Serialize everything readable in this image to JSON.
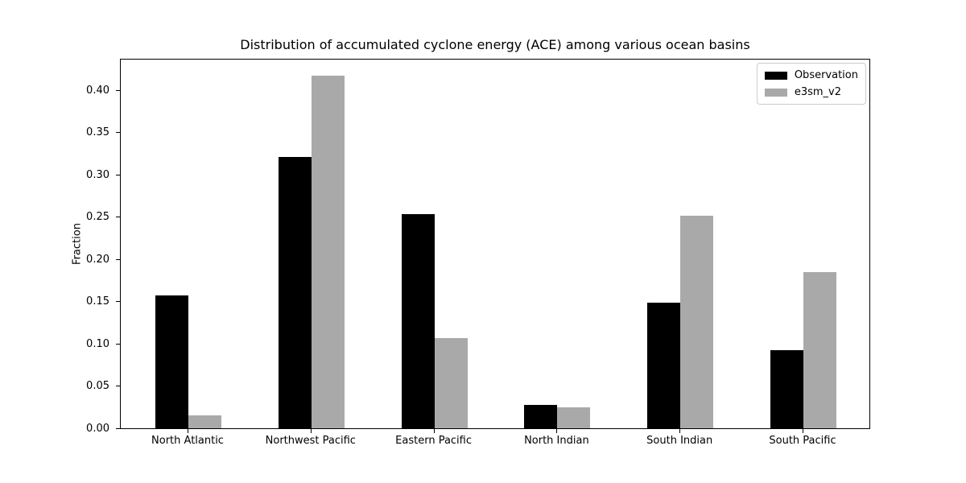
{
  "chart_data": {
    "type": "bar",
    "title": "Distribution of accumulated cyclone energy (ACE) among various ocean basins",
    "xlabel": "",
    "ylabel": "Fraction",
    "categories": [
      "North Atlantic",
      "Northwest Pacific",
      "Eastern Pacific",
      "North Indian",
      "South Indian",
      "South Pacific"
    ],
    "series": [
      {
        "name": "Observation",
        "color": "#000000",
        "values": [
          0.157,
          0.321,
          0.253,
          0.028,
          0.149,
          0.092
        ]
      },
      {
        "name": "e3sm_v2",
        "color": "#a9a9a9",
        "values": [
          0.015,
          0.417,
          0.107,
          0.025,
          0.251,
          0.185
        ]
      }
    ],
    "ylim": [
      0,
      0.438
    ],
    "yticks": [
      0.0,
      0.05,
      0.1,
      0.15,
      0.2,
      0.25,
      0.3,
      0.35,
      0.4
    ],
    "ytick_format_decimals": 2,
    "grid": false,
    "legend_position": "upper right",
    "colors": {
      "axis": "#000000",
      "legend_border": "#cccccc",
      "background": "#ffffff"
    }
  }
}
